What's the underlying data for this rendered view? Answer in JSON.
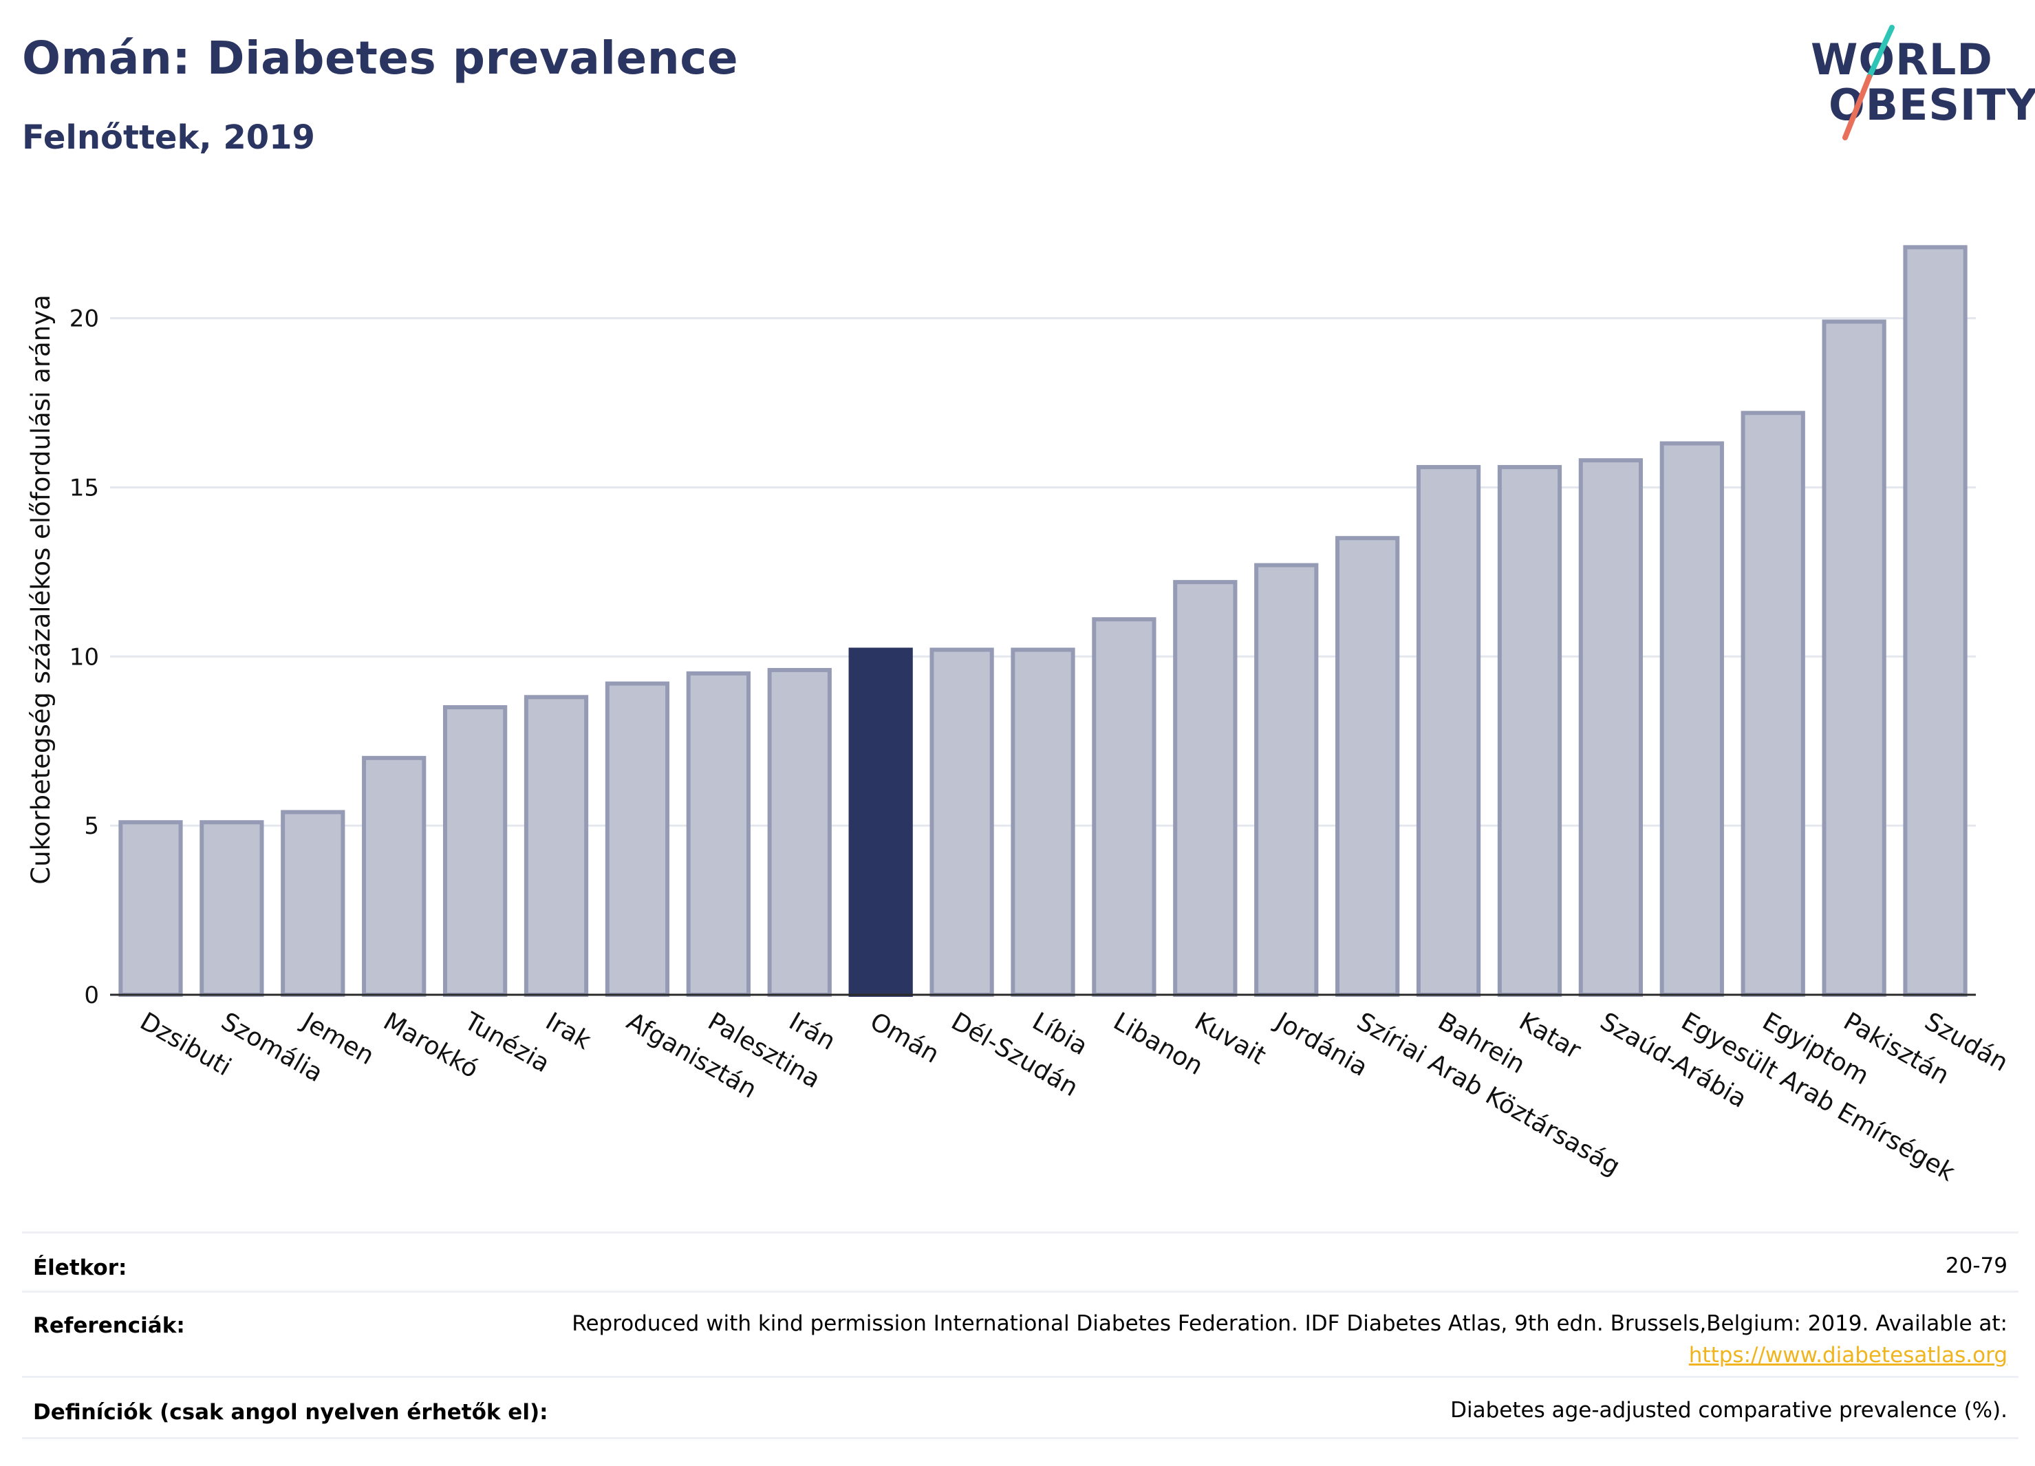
{
  "header": {
    "title": "Omán: Diabetes prevalence",
    "subtitle": "Felnőttek, 2019"
  },
  "logo": {
    "line1": "WORLD",
    "line2": "OBESITY",
    "colors": {
      "text": "#2b3561",
      "slash_top": "#2ec4b6",
      "slash_bottom": "#e8705a"
    }
  },
  "chart_data": {
    "type": "bar",
    "ylabel": "Cukorbetegség százalékos előfordulási aránya",
    "xlabel": "",
    "ylim": [
      0,
      22.9
    ],
    "yticks": [
      0,
      5,
      10,
      15,
      20
    ],
    "grid": true,
    "highlight": "Omán",
    "colors": {
      "bar": "#bfc3d1",
      "bar_edge": "#959bb5",
      "highlight": "#2b3561",
      "grid": "#e5e7ee",
      "axis": "#2b2b2b"
    },
    "categories": [
      "Dzsibuti",
      "Szomália",
      "Jemen",
      "Marokkó",
      "Tunézia",
      "Irak",
      "Afganisztán",
      "Palesztina",
      "Irán",
      "Omán",
      "Dél-Szudán",
      "Líbia",
      "Libanon",
      "Kuvait",
      "Jordánia",
      "Szíriai Arab Köztársaság",
      "Bahrein",
      "Katar",
      "Szaúd-Arábia",
      "Egyesült Arab Emírségek",
      "Egyiptom",
      "Pakisztán",
      "Szudán"
    ],
    "values": [
      5.1,
      5.1,
      5.4,
      7.0,
      8.5,
      8.8,
      9.2,
      9.5,
      9.6,
      10.2,
      10.2,
      10.2,
      11.1,
      12.2,
      12.7,
      13.5,
      15.6,
      15.6,
      15.8,
      16.3,
      17.2,
      19.9,
      22.1
    ]
  },
  "info": {
    "age": {
      "label": "Életkor:",
      "value": "20-79"
    },
    "references": {
      "label": "Referenciák:",
      "value": "Reproduced with kind permission International Diabetes Federation. IDF Diabetes Atlas, 9th edn. Brussels,Belgium: 2019. Available at:",
      "link": "https://www.diabetesatlas.org"
    },
    "definitions": {
      "label": "Definíciók (csak angol nyelven érhetők el):",
      "value": "Diabetes age-adjusted comparative prevalence (%)."
    }
  }
}
